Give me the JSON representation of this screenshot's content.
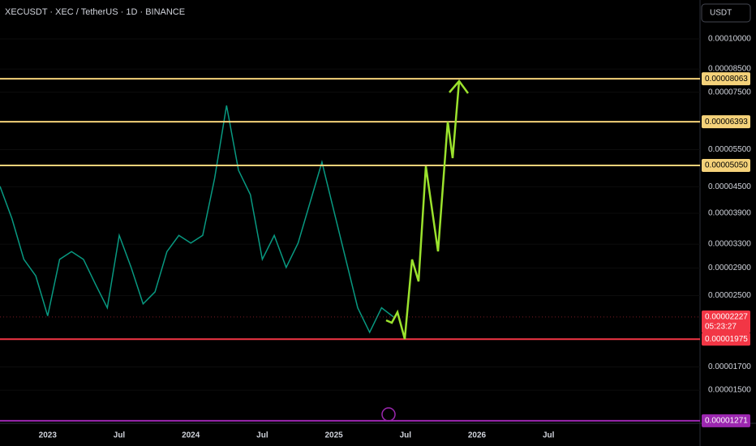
{
  "header": {
    "symbol": "XECUSDT · XEC / TetherUS · 1D · BINANCE",
    "currency": "USDT"
  },
  "chart_data": {
    "type": "line",
    "log_scale": true,
    "categories": [
      null,
      null,
      null,
      null,
      "2023",
      null,
      null,
      null,
      null,
      null,
      "Jul",
      null,
      null,
      null,
      null,
      null,
      "2024",
      null,
      null,
      null,
      null,
      null,
      "Jul",
      null,
      null,
      null,
      null,
      null,
      "2025",
      null,
      null,
      null,
      null,
      null,
      "Jul",
      null,
      null,
      null,
      null,
      null,
      "2026",
      null,
      null,
      null,
      null,
      null,
      "Jul",
      null
    ],
    "series": [
      {
        "color": "#089981",
        "values": [
          4.51e-05,
          3.79e-05,
          3.04e-05,
          2.78e-05,
          2.24e-05,
          3.04e-05,
          3.17e-05,
          3.04e-05,
          2.66e-05,
          2.34e-05,
          3.46e-05,
          2.91e-05,
          2.39e-05,
          2.55e-05,
          3.17e-05,
          3.46e-05,
          3.32e-05,
          3.46e-05,
          4.71e-05,
          6.98e-05,
          4.92e-05,
          4.31e-05,
          3.04e-05,
          3.46e-05,
          2.91e-05,
          3.32e-05,
          4.13e-05,
          5.14e-05,
          3.95e-05,
          3.04e-05,
          2.34e-05,
          2.05e-05,
          2.34e-05,
          2.227e-05,
          null,
          null,
          null,
          null,
          null,
          null,
          null,
          null,
          null,
          null,
          null,
          null,
          null,
          null
        ]
      }
    ],
    "ylim": [
      1.265e-05,
      0.0001234
    ],
    "yticks": [
      {
        "value": 0.0001,
        "label": "0.00010000"
      },
      {
        "value": 8.5e-05,
        "label": "0.00008500"
      },
      {
        "value": 7.5e-05,
        "label": "0.00007500"
      },
      {
        "value": 5.5e-05,
        "label": "0.00005500"
      },
      {
        "value": 4.5e-05,
        "label": "0.00004500"
      },
      {
        "value": 3.9e-05,
        "label": "0.00003900"
      },
      {
        "value": 3.3e-05,
        "label": "0.00003300"
      },
      {
        "value": 2.9e-05,
        "label": "0.00002900"
      },
      {
        "value": 2.5e-05,
        "label": "0.00002500"
      },
      {
        "value": 1.7e-05,
        "label": "0.00001700"
      },
      {
        "value": 1.5e-05,
        "label": "0.00001500"
      }
    ],
    "levels": [
      {
        "value": 8.063e-05,
        "label": "0.00008063",
        "color": "#f5d27a"
      },
      {
        "value": 6.393e-05,
        "label": "0.00006393",
        "color": "#f5d27a"
      },
      {
        "value": 5.05e-05,
        "label": "0.00005050",
        "color": "#f5d27a"
      },
      {
        "value": 1.975e-05,
        "label": "0.00001975",
        "color": "#f23645"
      },
      {
        "value": 1.271e-05,
        "label": "0.00001271",
        "color": "#9c27b0"
      }
    ],
    "last_price": {
      "value": 2.227e-05,
      "label": "0.00002227",
      "countdown": "05:23:27",
      "color": "#f23645"
    }
  }
}
